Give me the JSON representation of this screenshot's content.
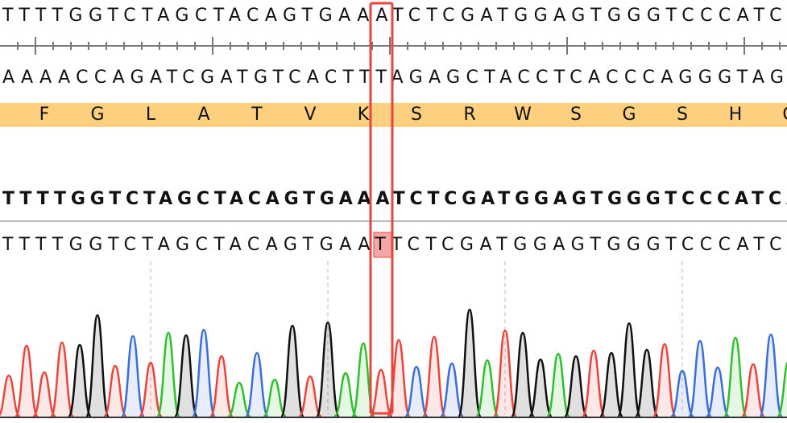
{
  "reference": {
    "sequence": "TTTTGGTCTAGCTACAGTGAAATCTCGATGGAGTGGGTCCCATCA",
    "complement": "AAAACCAGATCGATGTCACTTTAGAGCTACCTCACCCAGGGTAGT",
    "translation": [
      "F",
      "G",
      "L",
      "A",
      "T",
      "V",
      "K",
      "S",
      "R",
      "W",
      "S",
      "G",
      "S",
      "H",
      "C"
    ]
  },
  "alignment": {
    "consensus": "TTTTGGTCTAGCTACAGTGAAATCTCGATGGAGTGGGTCCCATCA",
    "read": "TTTTGGTCTAGCTACAGTGAATTCTCGATGGAGTGGGTCCCATCA"
  }
}
